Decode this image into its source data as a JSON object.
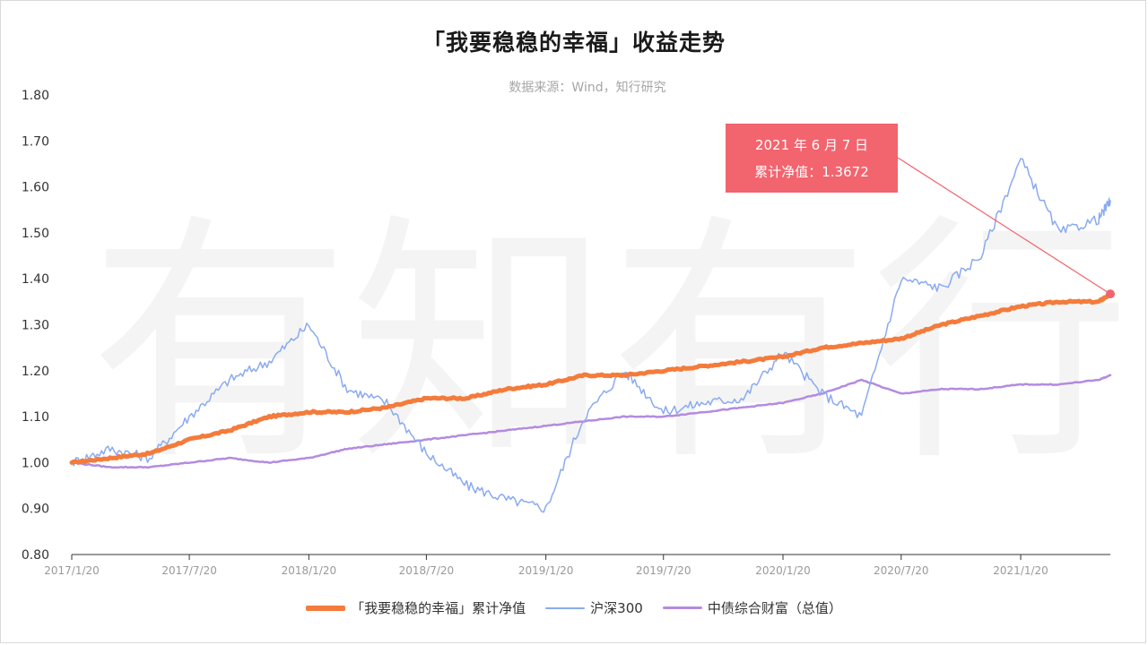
{
  "title": "「我要稳稳的幸福」收益走势",
  "subtitle": "数据来源：Wind，知行研究",
  "watermark": [
    "有",
    "知",
    "有",
    "行"
  ],
  "tooltip": {
    "date": "2021 年 6 月 7 日",
    "value": "累计净值：1.3672"
  },
  "colors": {
    "fund": "#f47b3b",
    "hs300": "#8aaaf0",
    "bond": "#b48be0",
    "tooltip": "#f2646e"
  },
  "chart_data": {
    "type": "line",
    "ylim": [
      0.8,
      1.8
    ],
    "yticks": [
      "0.80",
      "0.90",
      "1.00",
      "1.10",
      "1.20",
      "1.30",
      "1.40",
      "1.50",
      "1.60",
      "1.70",
      "1.80"
    ],
    "xticks": [
      "2017/1/20",
      "2017/7/20",
      "2018/1/20",
      "2018/7/20",
      "2019/1/20",
      "2019/7/20",
      "2020/1/20",
      "2020/7/20",
      "2021/1/20"
    ],
    "grid": false,
    "legend": "bottom",
    "x": [
      "2017/1/20",
      "2017/3/20",
      "2017/5/20",
      "2017/7/20",
      "2017/9/20",
      "2017/11/20",
      "2018/1/20",
      "2018/3/20",
      "2018/5/20",
      "2018/7/20",
      "2018/9/20",
      "2018/11/20",
      "2019/1/20",
      "2019/3/20",
      "2019/5/20",
      "2019/7/20",
      "2019/9/20",
      "2019/11/20",
      "2020/1/20",
      "2020/3/20",
      "2020/5/20",
      "2020/7/20",
      "2020/9/20",
      "2020/11/20",
      "2021/1/20",
      "2021/3/20",
      "2021/5/20",
      "2021/6/7"
    ],
    "series": [
      {
        "name": "「我要稳稳的幸福」累计净值",
        "color_key": "fund",
        "values": [
          1.0,
          1.01,
          1.02,
          1.05,
          1.07,
          1.1,
          1.11,
          1.11,
          1.12,
          1.14,
          1.14,
          1.16,
          1.17,
          1.19,
          1.19,
          1.2,
          1.21,
          1.22,
          1.23,
          1.25,
          1.26,
          1.27,
          1.3,
          1.32,
          1.34,
          1.35,
          1.35,
          1.367
        ]
      },
      {
        "name": "沪深300",
        "color_key": "hs300",
        "values": [
          1.0,
          1.03,
          1.01,
          1.1,
          1.18,
          1.22,
          1.3,
          1.16,
          1.13,
          1.02,
          0.95,
          0.92,
          0.9,
          1.1,
          1.2,
          1.11,
          1.13,
          1.14,
          1.24,
          1.15,
          1.1,
          1.4,
          1.38,
          1.45,
          1.66,
          1.5,
          1.53,
          1.57
        ]
      },
      {
        "name": "中债综合财富（总值）",
        "color_key": "bond",
        "values": [
          1.0,
          0.99,
          0.99,
          1.0,
          1.01,
          1.0,
          1.01,
          1.03,
          1.04,
          1.05,
          1.06,
          1.07,
          1.08,
          1.09,
          1.1,
          1.1,
          1.11,
          1.12,
          1.13,
          1.15,
          1.18,
          1.15,
          1.16,
          1.16,
          1.17,
          1.17,
          1.18,
          1.19
        ]
      }
    ]
  }
}
